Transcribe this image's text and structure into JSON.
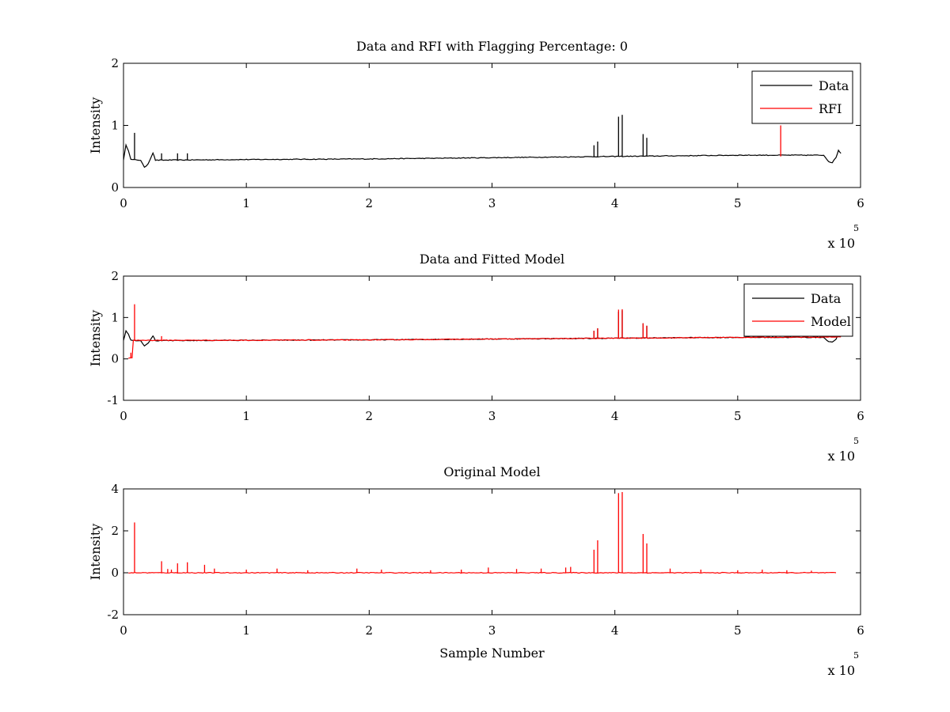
{
  "chart_data": [
    {
      "type": "line",
      "title": "Data and RFI with Flagging Percentage: 0",
      "xlabel": "",
      "ylabel": "Intensity",
      "xlim": [
        0,
        600000
      ],
      "ylim": [
        0,
        2
      ],
      "xticks": [
        0,
        1,
        2,
        3,
        4,
        5,
        6
      ],
      "yticks": [
        0,
        1,
        2
      ],
      "x_multiplier_label": "x 10",
      "x_multiplier_exponent": "5",
      "grid": false,
      "legend_position": "top-right",
      "series": [
        {
          "name": "Data",
          "color": "#000000",
          "baseline": [
            [
              0,
              0.45
            ],
            [
              2000,
              0.68
            ],
            [
              4000,
              0.6
            ],
            [
              6000,
              0.45
            ],
            [
              14000,
              0.44
            ],
            [
              17000,
              0.32
            ],
            [
              20000,
              0.38
            ],
            [
              24000,
              0.56
            ],
            [
              26000,
              0.44
            ],
            [
              100000,
              0.45
            ],
            [
              200000,
              0.46
            ],
            [
              300000,
              0.48
            ],
            [
              400000,
              0.5
            ],
            [
              500000,
              0.52
            ],
            [
              570000,
              0.52
            ],
            [
              574000,
              0.42
            ],
            [
              577000,
              0.4
            ],
            [
              580000,
              0.48
            ],
            [
              582000,
              0.6
            ],
            [
              584000,
              0.55
            ]
          ],
          "spikes": [
            [
              9000,
              0.88
            ],
            [
              31000,
              0.55
            ],
            [
              44000,
              0.55
            ],
            [
              52000,
              0.55
            ],
            [
              383000,
              0.68
            ],
            [
              386000,
              0.74
            ],
            [
              403000,
              1.14
            ],
            [
              406000,
              1.17
            ],
            [
              423000,
              0.86
            ],
            [
              426000,
              0.8
            ]
          ]
        },
        {
          "name": "RFI",
          "color": "#ff0000",
          "baseline": [],
          "spikes": [
            [
              535000,
              1.0
            ]
          ]
        }
      ]
    },
    {
      "type": "line",
      "title": "Data and Fitted Model",
      "xlabel": "",
      "ylabel": "Intensity",
      "xlim": [
        0,
        600000
      ],
      "ylim": [
        -1,
        2
      ],
      "xticks": [
        0,
        1,
        2,
        3,
        4,
        5,
        6
      ],
      "yticks": [
        -1,
        0,
        1,
        2
      ],
      "x_multiplier_label": "x 10",
      "x_multiplier_exponent": "5",
      "grid": false,
      "legend_position": "top-right",
      "series": [
        {
          "name": "Data",
          "color": "#000000",
          "baseline": [
            [
              0,
              0.45
            ],
            [
              2000,
              0.68
            ],
            [
              4000,
              0.6
            ],
            [
              6000,
              0.45
            ],
            [
              14000,
              0.44
            ],
            [
              17000,
              0.32
            ],
            [
              20000,
              0.38
            ],
            [
              24000,
              0.56
            ],
            [
              26000,
              0.44
            ],
            [
              100000,
              0.45
            ],
            [
              200000,
              0.46
            ],
            [
              300000,
              0.48
            ],
            [
              400000,
              0.5
            ],
            [
              500000,
              0.52
            ],
            [
              570000,
              0.52
            ],
            [
              574000,
              0.42
            ],
            [
              577000,
              0.4
            ],
            [
              580000,
              0.48
            ],
            [
              582000,
              0.58
            ]
          ],
          "spikes": [
            [
              383000,
              0.68
            ],
            [
              386000,
              0.74
            ],
            [
              403000,
              1.14
            ],
            [
              406000,
              1.17
            ],
            [
              423000,
              0.86
            ],
            [
              426000,
              0.8
            ]
          ]
        },
        {
          "name": "Model",
          "color": "#ff0000",
          "baseline": [
            [
              4000,
              0.02
            ],
            [
              7000,
              0.02
            ],
            [
              8000,
              0.45
            ],
            [
              100000,
              0.45
            ],
            [
              200000,
              0.46
            ],
            [
              300000,
              0.48
            ],
            [
              400000,
              0.5
            ],
            [
              500000,
              0.52
            ],
            [
              584000,
              0.53
            ]
          ],
          "spikes": [
            [
              6000,
              0.15
            ],
            [
              9000,
              1.32
            ],
            [
              31000,
              0.55
            ],
            [
              383000,
              0.68
            ],
            [
              386000,
              0.74
            ],
            [
              403000,
              1.19
            ],
            [
              406000,
              1.2
            ],
            [
              423000,
              0.86
            ],
            [
              426000,
              0.8
            ]
          ]
        }
      ]
    },
    {
      "type": "line",
      "title": "Original Model",
      "xlabel": "Sample Number",
      "ylabel": "Intensity",
      "xlim": [
        0,
        600000
      ],
      "ylim": [
        -2,
        4
      ],
      "xticks": [
        0,
        1,
        2,
        3,
        4,
        5,
        6
      ],
      "yticks": [
        -2,
        0,
        2,
        4
      ],
      "x_multiplier_label": "x 10",
      "x_multiplier_exponent": "5",
      "grid": false,
      "legend_position": "none",
      "series": [
        {
          "name": "",
          "color": "#ff0000",
          "baseline": [
            [
              4000,
              0.0
            ],
            [
              580000,
              0.0
            ]
          ],
          "spikes": [
            [
              9000,
              2.4
            ],
            [
              31000,
              0.55
            ],
            [
              36000,
              0.18
            ],
            [
              39000,
              0.15
            ],
            [
              44000,
              0.45
            ],
            [
              52000,
              0.5
            ],
            [
              66000,
              0.38
            ],
            [
              74000,
              0.2
            ],
            [
              100000,
              0.15
            ],
            [
              125000,
              0.2
            ],
            [
              150000,
              0.12
            ],
            [
              190000,
              0.2
            ],
            [
              210000,
              0.15
            ],
            [
              250000,
              0.12
            ],
            [
              275000,
              0.15
            ],
            [
              297000,
              0.25
            ],
            [
              320000,
              0.18
            ],
            [
              340000,
              0.2
            ],
            [
              360000,
              0.25
            ],
            [
              364000,
              0.28
            ],
            [
              383000,
              1.1
            ],
            [
              386000,
              1.55
            ],
            [
              403000,
              3.8
            ],
            [
              406000,
              3.85
            ],
            [
              423000,
              1.85
            ],
            [
              426000,
              1.4
            ],
            [
              445000,
              0.2
            ],
            [
              470000,
              0.15
            ],
            [
              500000,
              0.12
            ],
            [
              520000,
              0.15
            ],
            [
              540000,
              0.12
            ],
            [
              560000,
              0.1
            ]
          ]
        }
      ]
    }
  ]
}
